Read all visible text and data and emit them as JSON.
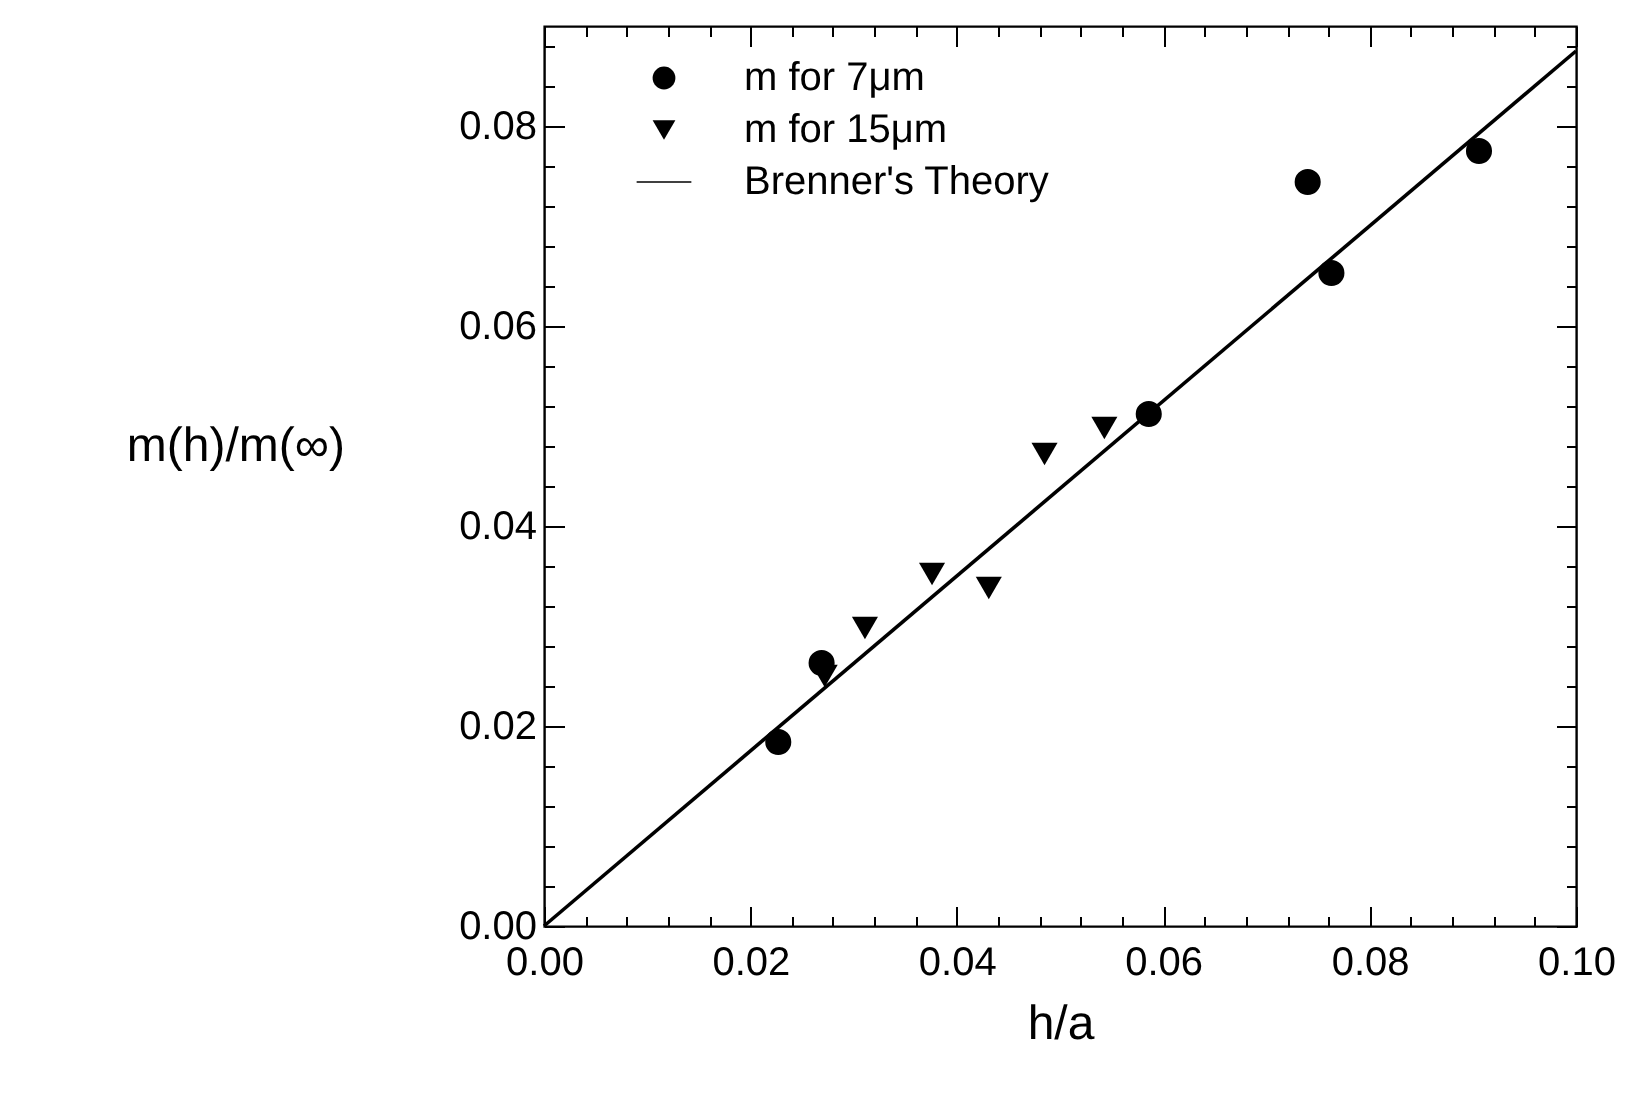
{
  "chart_data": {
    "type": "scatter",
    "xlabel": "h/a",
    "ylabel": "m(h)/m(∞)",
    "xlim": [
      0,
      0.1
    ],
    "ylim": [
      0,
      0.09
    ],
    "xticks": [
      {
        "value": 0,
        "label": "0.00"
      },
      {
        "value": 0.004,
        "label": null
      },
      {
        "value": 0.008,
        "label": null
      },
      {
        "value": 0.012,
        "label": null
      },
      {
        "value": 0.016,
        "label": null
      },
      {
        "value": 0.02,
        "label": "0.02"
      },
      {
        "value": 0.024,
        "label": null
      },
      {
        "value": 0.028,
        "label": null
      },
      {
        "value": 0.032,
        "label": null
      },
      {
        "value": 0.036,
        "label": null
      },
      {
        "value": 0.04,
        "label": "0.04"
      },
      {
        "value": 0.044,
        "label": null
      },
      {
        "value": 0.048,
        "label": null
      },
      {
        "value": 0.052,
        "label": null
      },
      {
        "value": 0.056,
        "label": null
      },
      {
        "value": 0.06,
        "label": "0.06"
      },
      {
        "value": 0.064,
        "label": null
      },
      {
        "value": 0.068,
        "label": null
      },
      {
        "value": 0.072,
        "label": null
      },
      {
        "value": 0.076,
        "label": null
      },
      {
        "value": 0.08,
        "label": "0.08"
      },
      {
        "value": 0.084,
        "label": null
      },
      {
        "value": 0.088,
        "label": null
      },
      {
        "value": 0.092,
        "label": null
      },
      {
        "value": 0.096,
        "label": null
      },
      {
        "value": 0.1,
        "label": "0.10"
      }
    ],
    "yticks": [
      {
        "value": 0,
        "label": "0.00"
      },
      {
        "value": 0.004,
        "label": null
      },
      {
        "value": 0.008,
        "label": null
      },
      {
        "value": 0.012,
        "label": null
      },
      {
        "value": 0.016,
        "label": null
      },
      {
        "value": 0.02,
        "label": "0.02"
      },
      {
        "value": 0.024,
        "label": null
      },
      {
        "value": 0.028,
        "label": null
      },
      {
        "value": 0.032,
        "label": null
      },
      {
        "value": 0.036,
        "label": null
      },
      {
        "value": 0.04,
        "label": "0.04"
      },
      {
        "value": 0.044,
        "label": null
      },
      {
        "value": 0.048,
        "label": null
      },
      {
        "value": 0.052,
        "label": null
      },
      {
        "value": 0.056,
        "label": null
      },
      {
        "value": 0.06,
        "label": "0.06"
      },
      {
        "value": 0.064,
        "label": null
      },
      {
        "value": 0.068,
        "label": null
      },
      {
        "value": 0.072,
        "label": null
      },
      {
        "value": 0.076,
        "label": null
      },
      {
        "value": 0.08,
        "label": "0.08"
      },
      {
        "value": 0.084,
        "label": null
      },
      {
        "value": 0.088,
        "label": null
      }
    ],
    "grid": false,
    "legend": "top left",
    "series": [
      {
        "name": "m for 7μm",
        "type": "scatter",
        "marker": "circle",
        "color": "#000000",
        "x": [
          0.0227,
          0.0269,
          0.0586,
          0.074,
          0.0763,
          0.0906
        ],
        "values": [
          0.0184,
          0.0263,
          0.0512,
          0.0744,
          0.0653,
          0.0775
        ]
      },
      {
        "name": "m for 15μm",
        "type": "scatter",
        "marker": "triangle",
        "color": "#000000",
        "x": [
          0.0272,
          0.0311,
          0.0376,
          0.0431,
          0.0485,
          0.0543
        ],
        "values": [
          0.025,
          0.0298,
          0.0352,
          0.0338,
          0.0472,
          0.0498
        ]
      },
      {
        "name": "Brenner's Theory",
        "type": "line",
        "marker": "none",
        "line_style": "solid",
        "color": "#000000",
        "x": [
          0,
          0.1
        ],
        "values": [
          0,
          0.0875
        ]
      }
    ]
  }
}
